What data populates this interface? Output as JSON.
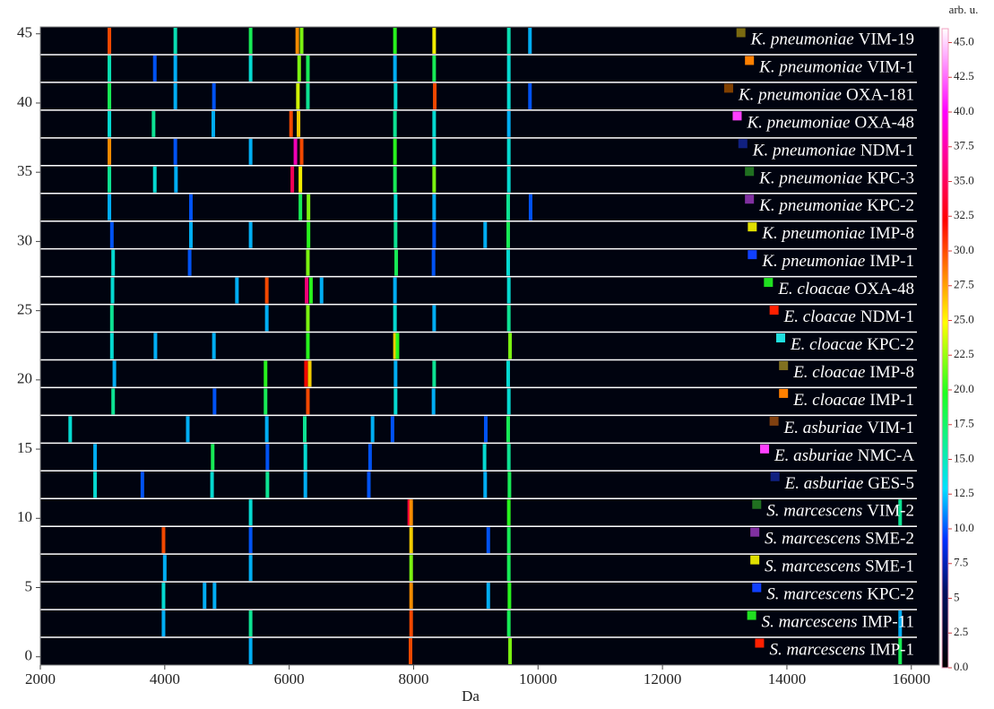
{
  "chart_data": {
    "type": "gel",
    "x_label": "Da",
    "colorbar_label": "arb. u.",
    "xlim": [
      2000,
      16450
    ],
    "xticks": [
      2000,
      4000,
      6000,
      8000,
      10000,
      12000,
      14000,
      16000
    ],
    "ylim": [
      -0.6,
      45.5
    ],
    "yticks": [
      0,
      5,
      10,
      15,
      20,
      25,
      30,
      35,
      40,
      45
    ],
    "clim": [
      0,
      46
    ],
    "cticks": [
      {
        "value": 0,
        "label": "0.0"
      },
      2.5,
      5,
      7.5,
      {
        "value": 10,
        "label": "10.0"
      },
      12.5,
      {
        "value": 15,
        "label": "15.0"
      },
      17.5,
      {
        "value": 20,
        "label": "20.0"
      },
      22.5,
      {
        "value": 25,
        "label": "25.0"
      },
      27.5,
      {
        "value": 30,
        "label": "30.0"
      },
      32.5,
      {
        "value": 35,
        "label": "35.0"
      },
      37.5,
      {
        "value": 40,
        "label": "40.0"
      },
      42.5,
      {
        "value": 45,
        "label": "45.0"
      }
    ],
    "series": [
      {
        "species": "K. pneumoniae",
        "strain": "VIM-19",
        "color": "#7a6a10",
        "peaks": [
          [
            3110,
            30
          ],
          [
            4170,
            15
          ],
          [
            5380,
            18
          ],
          [
            6130,
            28
          ],
          [
            6200,
            22
          ],
          [
            7700,
            20
          ],
          [
            8330,
            25
          ],
          [
            9530,
            15
          ],
          [
            9870,
            12
          ]
        ]
      },
      {
        "species": "K. pneumoniae",
        "strain": "VIM-1",
        "color": "#ff8000",
        "peaks": [
          [
            3110,
            15
          ],
          [
            3840,
            10
          ],
          [
            4170,
            12
          ],
          [
            5380,
            14
          ],
          [
            6160,
            22
          ],
          [
            6300,
            18
          ],
          [
            7700,
            12
          ],
          [
            8330,
            18
          ],
          [
            9530,
            14
          ]
        ]
      },
      {
        "species": "K. pneumoniae",
        "strain": "OXA-181",
        "color": "#804000",
        "peaks": [
          [
            3110,
            18
          ],
          [
            4170,
            12
          ],
          [
            4790,
            10
          ],
          [
            6140,
            24
          ],
          [
            6300,
            16
          ],
          [
            7710,
            14
          ],
          [
            8340,
            30
          ],
          [
            9530,
            14
          ],
          [
            9870,
            10
          ]
        ]
      },
      {
        "species": "K. pneumoniae",
        "strain": "OXA-48",
        "color": "#ff40ff",
        "peaks": [
          [
            3110,
            14
          ],
          [
            3820,
            16
          ],
          [
            4780,
            12
          ],
          [
            6030,
            30
          ],
          [
            6150,
            26
          ],
          [
            7700,
            16
          ],
          [
            8330,
            14
          ],
          [
            9530,
            12
          ]
        ]
      },
      {
        "species": "K. pneumoniae",
        "strain": "NDM-1",
        "color": "#102080",
        "peaks": [
          [
            3110,
            28
          ],
          [
            4170,
            10
          ],
          [
            5380,
            12
          ],
          [
            6100,
            38
          ],
          [
            6200,
            30
          ],
          [
            7700,
            20
          ],
          [
            8330,
            14
          ],
          [
            9530,
            14
          ]
        ]
      },
      {
        "species": "K. pneumoniae",
        "strain": "KPC-3",
        "color": "#207020",
        "peaks": [
          [
            3110,
            16
          ],
          [
            3840,
            14
          ],
          [
            4180,
            12
          ],
          [
            6050,
            35
          ],
          [
            6180,
            25
          ],
          [
            7700,
            18
          ],
          [
            8330,
            22
          ],
          [
            9530,
            14
          ]
        ]
      },
      {
        "species": "K. pneumoniae",
        "strain": "KPC-2",
        "color": "#8030a0",
        "peaks": [
          [
            3110,
            12
          ],
          [
            4420,
            10
          ],
          [
            6180,
            18
          ],
          [
            6310,
            22
          ],
          [
            7710,
            14
          ],
          [
            8330,
            12
          ],
          [
            9520,
            16
          ],
          [
            9880,
            10
          ]
        ]
      },
      {
        "species": "K. pneumoniae",
        "strain": "IMP-8",
        "color": "#e0e000",
        "peaks": [
          [
            3150,
            10
          ],
          [
            4420,
            12
          ],
          [
            5380,
            12
          ],
          [
            6310,
            20
          ],
          [
            7710,
            16
          ],
          [
            8330,
            10
          ],
          [
            9150,
            12
          ],
          [
            9520,
            18
          ]
        ]
      },
      {
        "species": "K. pneumoniae",
        "strain": "IMP-1",
        "color": "#1040ff",
        "peaks": [
          [
            3170,
            14
          ],
          [
            4400,
            10
          ],
          [
            6300,
            22
          ],
          [
            7720,
            18
          ],
          [
            8320,
            10
          ],
          [
            9520,
            14
          ]
        ]
      },
      {
        "species": "E. cloacae",
        "strain": "OXA-48",
        "color": "#20e020",
        "peaks": [
          [
            3160,
            14
          ],
          [
            5160,
            12
          ],
          [
            5640,
            30
          ],
          [
            6280,
            36
          ],
          [
            6350,
            20
          ],
          [
            6520,
            12
          ],
          [
            7700,
            12
          ],
          [
            9530,
            14
          ]
        ]
      },
      {
        "species": "E. cloacae",
        "strain": "NDM-1",
        "color": "#ff2000",
        "peaks": [
          [
            3150,
            16
          ],
          [
            5640,
            12
          ],
          [
            6300,
            22
          ],
          [
            7700,
            14
          ],
          [
            8330,
            12
          ],
          [
            9530,
            16
          ]
        ]
      },
      {
        "species": "E. cloacae",
        "strain": "KPC-2",
        "color": "#20e0e0",
        "peaks": [
          [
            3150,
            14
          ],
          [
            3850,
            12
          ],
          [
            4790,
            12
          ],
          [
            6300,
            20
          ],
          [
            7700,
            26
          ],
          [
            7740,
            20
          ],
          [
            9550,
            22
          ]
        ]
      },
      {
        "species": "E. cloacae",
        "strain": "IMP-8",
        "color": "#807020",
        "peaks": [
          [
            3190,
            12
          ],
          [
            5620,
            20
          ],
          [
            6270,
            32
          ],
          [
            6330,
            26
          ],
          [
            7710,
            12
          ],
          [
            8330,
            16
          ],
          [
            9520,
            14
          ]
        ]
      },
      {
        "species": "E. cloacae",
        "strain": "IMP-1",
        "color": "#ff8000",
        "peaks": [
          [
            3170,
            16
          ],
          [
            4800,
            10
          ],
          [
            5620,
            18
          ],
          [
            6300,
            30
          ],
          [
            7710,
            14
          ],
          [
            8320,
            12
          ],
          [
            9530,
            14
          ]
        ]
      },
      {
        "species": "E. asburiae",
        "strain": "VIM-1",
        "color": "#804010",
        "peaks": [
          [
            2480,
            14
          ],
          [
            4370,
            12
          ],
          [
            5640,
            12
          ],
          [
            6250,
            16
          ],
          [
            7340,
            12
          ],
          [
            7660,
            10
          ],
          [
            9160,
            10
          ],
          [
            9520,
            18
          ]
        ]
      },
      {
        "species": "E. asburiae",
        "strain": "NMC-A",
        "color": "#ff40ff",
        "peaks": [
          [
            2880,
            12
          ],
          [
            4770,
            18
          ],
          [
            5650,
            10
          ],
          [
            6260,
            14
          ],
          [
            7300,
            10
          ],
          [
            9140,
            14
          ],
          [
            9530,
            16
          ]
        ]
      },
      {
        "species": "E. asburiae",
        "strain": "GES-5",
        "color": "#102080",
        "peaks": [
          [
            2880,
            14
          ],
          [
            3640,
            10
          ],
          [
            4760,
            14
          ],
          [
            5650,
            16
          ],
          [
            6260,
            12
          ],
          [
            7280,
            10
          ],
          [
            9150,
            12
          ],
          [
            9540,
            18
          ]
        ]
      },
      {
        "species": "S. marcescens",
        "strain": "VIM-2",
        "color": "#207020",
        "peaks": [
          [
            5380,
            14
          ],
          [
            7930,
            34
          ],
          [
            7960,
            28
          ],
          [
            9530,
            20
          ],
          [
            15820,
            16
          ]
        ]
      },
      {
        "species": "S. marcescens",
        "strain": "SME-2",
        "color": "#8030a0",
        "peaks": [
          [
            3980,
            30
          ],
          [
            5380,
            10
          ],
          [
            7960,
            26
          ],
          [
            9200,
            10
          ],
          [
            9530,
            18
          ]
        ]
      },
      {
        "species": "S. marcescens",
        "strain": "SME-1",
        "color": "#e0e000",
        "peaks": [
          [
            4000,
            12
          ],
          [
            5380,
            12
          ],
          [
            7960,
            22
          ],
          [
            9530,
            18
          ]
        ]
      },
      {
        "species": "S. marcescens",
        "strain": "KPC-2",
        "color": "#1040ff",
        "peaks": [
          [
            3980,
            14
          ],
          [
            4640,
            12
          ],
          [
            4800,
            12
          ],
          [
            7960,
            28
          ],
          [
            9200,
            12
          ],
          [
            9540,
            20
          ]
        ]
      },
      {
        "species": "S. marcescens",
        "strain": "IMP-11",
        "color": "#20e020",
        "peaks": [
          [
            3980,
            12
          ],
          [
            5380,
            16
          ],
          [
            7960,
            30
          ],
          [
            9530,
            18
          ],
          [
            15820,
            12
          ]
        ]
      },
      {
        "species": "S. marcescens",
        "strain": "IMP-1",
        "color": "#ff2000",
        "peaks": [
          [
            5380,
            12
          ],
          [
            7950,
            30
          ],
          [
            9550,
            22
          ],
          [
            15820,
            18
          ]
        ]
      }
    ]
  }
}
